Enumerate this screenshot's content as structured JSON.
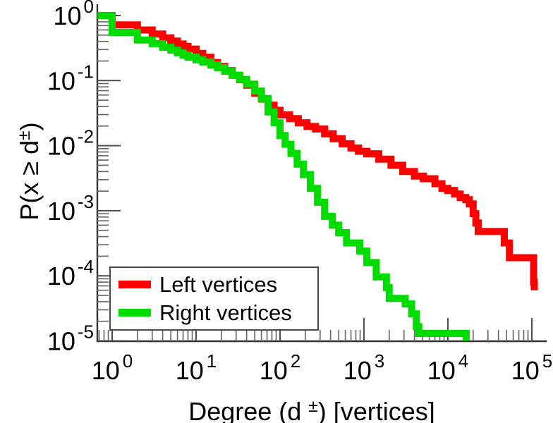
{
  "chart_data": {
    "type": "line",
    "subtype": "log-log step CCDF",
    "title": "",
    "xlabel_parts": {
      "prefix": "Degree (d ",
      "sup": "±",
      "suffix": ") [vertices]"
    },
    "ylabel_parts": {
      "prefix": "P(x ≥ d",
      "sup": "±",
      "suffix": ")"
    },
    "tick_base": "10",
    "x_axis": {
      "scale": "log",
      "tick_exponents": [
        0,
        1,
        2,
        3,
        4,
        5
      ],
      "range": [
        0.67,
        150000
      ],
      "grid": false
    },
    "y_axis": {
      "scale": "log",
      "tick_exponents": [
        0,
        -1,
        -2,
        -3,
        -4,
        -5
      ],
      "range": [
        1e-05,
        1.4
      ],
      "grid": false
    },
    "legend": {
      "position": "bottom-left"
    },
    "series": [
      {
        "name": "Left vertices",
        "color": "#ff0000",
        "points": [
          [
            0.67,
            1.0
          ],
          [
            1,
            0.72
          ],
          [
            2,
            0.6
          ],
          [
            3,
            0.52
          ],
          [
            4,
            0.455
          ],
          [
            5,
            0.405
          ],
          [
            6,
            0.365
          ],
          [
            7,
            0.335
          ],
          [
            8,
            0.305
          ],
          [
            10,
            0.262
          ],
          [
            12,
            0.228
          ],
          [
            15,
            0.19
          ],
          [
            18,
            0.165
          ],
          [
            22,
            0.142
          ],
          [
            27,
            0.121
          ],
          [
            33,
            0.103
          ],
          [
            40,
            0.085
          ],
          [
            50,
            0.064
          ],
          [
            60,
            0.052
          ],
          [
            72,
            0.042
          ],
          [
            85,
            0.035
          ],
          [
            100,
            0.0297
          ],
          [
            130,
            0.026
          ],
          [
            165,
            0.0225
          ],
          [
            210,
            0.0197
          ],
          [
            265,
            0.018
          ],
          [
            340,
            0.0152
          ],
          [
            430,
            0.0128
          ],
          [
            550,
            0.0107
          ],
          [
            700,
            0.0092
          ],
          [
            860,
            0.0082
          ],
          [
            1080,
            0.0075
          ],
          [
            1500,
            0.0062
          ],
          [
            2100,
            0.005
          ],
          [
            2900,
            0.004
          ],
          [
            4000,
            0.0034
          ],
          [
            5100,
            0.0031
          ],
          [
            7000,
            0.0026
          ],
          [
            8500,
            0.0022
          ],
          [
            10000,
            0.00205
          ],
          [
            12000,
            0.0018
          ],
          [
            14000,
            0.0016
          ],
          [
            16300,
            0.00148
          ],
          [
            18000,
            0.00127
          ],
          [
            20000,
            0.0009
          ],
          [
            21500,
            0.00065
          ],
          [
            23000,
            0.00048
          ],
          [
            47000,
            0.00032
          ],
          [
            54000,
            0.00019
          ],
          [
            105000,
            8e-05
          ],
          [
            107000,
            6e-05
          ]
        ]
      },
      {
        "name": "Right vertices",
        "color": "#00dc00",
        "points": [
          [
            0.67,
            1.0
          ],
          [
            1,
            0.55
          ],
          [
            2,
            0.42
          ],
          [
            3,
            0.37
          ],
          [
            4,
            0.325
          ],
          [
            5,
            0.294
          ],
          [
            6,
            0.266
          ],
          [
            7,
            0.247
          ],
          [
            8,
            0.229
          ],
          [
            10,
            0.208
          ],
          [
            12,
            0.193
          ],
          [
            15,
            0.174
          ],
          [
            18,
            0.158
          ],
          [
            22,
            0.139
          ],
          [
            27,
            0.121
          ],
          [
            33,
            0.104
          ],
          [
            40,
            0.088
          ],
          [
            50,
            0.069
          ],
          [
            60,
            0.053
          ],
          [
            72,
            0.033
          ],
          [
            85,
            0.0225
          ],
          [
            100,
            0.0143
          ],
          [
            115,
            0.0105
          ],
          [
            135,
            0.0076
          ],
          [
            160,
            0.0052
          ],
          [
            190,
            0.0036
          ],
          [
            230,
            0.0022
          ],
          [
            280,
            0.00135
          ],
          [
            340,
            0.00082
          ],
          [
            420,
            0.0006
          ],
          [
            500,
            0.00046
          ],
          [
            620,
            0.00032
          ],
          [
            890,
            0.00024
          ],
          [
            1080,
            0.00016
          ],
          [
            1400,
            9.6e-05
          ],
          [
            1850,
            6.6e-05
          ],
          [
            2000,
            4.5e-05
          ],
          [
            3100,
            3.7e-05
          ],
          [
            3700,
            2.6e-05
          ],
          [
            4200,
            1.65e-05
          ],
          [
            4500,
            1.3e-05
          ],
          [
            16500,
            1e-05
          ]
        ]
      }
    ]
  }
}
